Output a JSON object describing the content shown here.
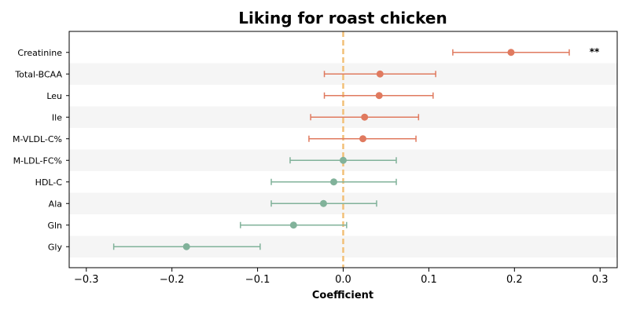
{
  "chart_data": {
    "type": "forest",
    "title": "Liking for roast chicken",
    "xlabel": "Coefficient",
    "xlim": [
      -0.32,
      0.32
    ],
    "xticks": [
      -0.3,
      -0.2,
      -0.1,
      0.0,
      0.1,
      0.2,
      0.3
    ],
    "xtick_labels": [
      "−0.3",
      "−0.2",
      "−0.1",
      "0.0",
      "0.1",
      "0.2",
      "0.3"
    ],
    "reference_line": 0,
    "alternating_row_shading": true,
    "colors": {
      "positive": "#e07a5f",
      "negative": "#81b29a",
      "reference": "#f2c078",
      "row_shade": "#f5f5f5"
    },
    "rows": [
      {
        "label": "Creatinine",
        "coef": 0.196,
        "low": 0.128,
        "high": 0.264,
        "sig": "**"
      },
      {
        "label": "Total-BCAA",
        "coef": 0.043,
        "low": -0.022,
        "high": 0.108,
        "sig": ""
      },
      {
        "label": "Leu",
        "coef": 0.042,
        "low": -0.022,
        "high": 0.105,
        "sig": ""
      },
      {
        "label": "Ile",
        "coef": 0.025,
        "low": -0.038,
        "high": 0.088,
        "sig": ""
      },
      {
        "label": "M-VLDL-C%",
        "coef": 0.023,
        "low": -0.04,
        "high": 0.085,
        "sig": ""
      },
      {
        "label": "M-LDL-FC%",
        "coef": 0.0,
        "low": -0.062,
        "high": 0.062,
        "sig": ""
      },
      {
        "label": "HDL-C",
        "coef": -0.011,
        "low": -0.084,
        "high": 0.062,
        "sig": ""
      },
      {
        "label": "Ala",
        "coef": -0.023,
        "low": -0.084,
        "high": 0.039,
        "sig": ""
      },
      {
        "label": "Gln",
        "coef": -0.058,
        "low": -0.12,
        "high": 0.004,
        "sig": ""
      },
      {
        "label": "Gly",
        "coef": -0.183,
        "low": -0.268,
        "high": -0.097,
        "sig": ""
      }
    ]
  }
}
